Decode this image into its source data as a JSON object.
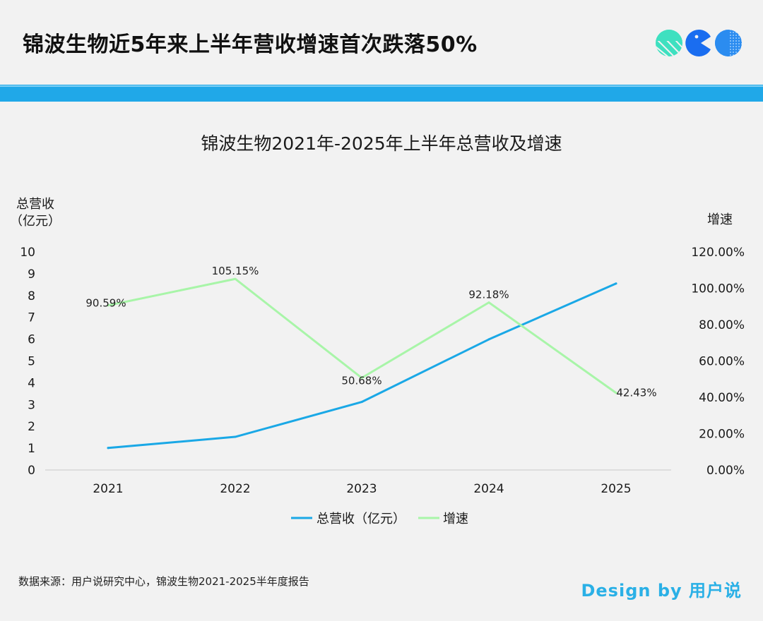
{
  "headline": "锦波生物近5年来上半年营收增速首次跌落50%",
  "logo": {
    "name": "brand-logo",
    "colors": [
      "#3ee0c0",
      "#1a6df0",
      "#2b8cf0"
    ]
  },
  "chart_data": {
    "type": "line",
    "title": "锦波生物2021年-2025年上半年总营收及增速",
    "left_axis_label": [
      "总营收",
      "（亿元）"
    ],
    "right_axis_label": "增速",
    "categories": [
      "2021",
      "2022",
      "2023",
      "2024",
      "2025"
    ],
    "left_ylim": [
      0,
      10
    ],
    "left_ticks": [
      "0",
      "1",
      "2",
      "3",
      "4",
      "5",
      "6",
      "7",
      "8",
      "9",
      "10"
    ],
    "right_ylim": [
      0,
      120
    ],
    "right_ticks": [
      "0.00%",
      "20.00%",
      "40.00%",
      "60.00%",
      "80.00%",
      "100.00%",
      "120.00%"
    ],
    "series": [
      {
        "name": "总营收（亿元）",
        "axis": "left",
        "color": "#1aa8e6",
        "values": [
          1.01,
          1.52,
          3.12,
          5.99,
          8.55
        ],
        "labels": null
      },
      {
        "name": "增速",
        "axis": "right",
        "color": "#a8f5a8",
        "values": [
          90.59,
          105.15,
          50.68,
          92.18,
          42.43
        ],
        "labels": [
          "90.59%",
          "105.15%",
          "50.68%",
          "92.18%",
          "42.43%"
        ]
      }
    ],
    "legend_position": "bottom",
    "grid": false
  },
  "footer": {
    "source": "数据来源：用户说研究中心，锦波生物2021-2025半年度报告",
    "credit": "Design by 用户说"
  }
}
